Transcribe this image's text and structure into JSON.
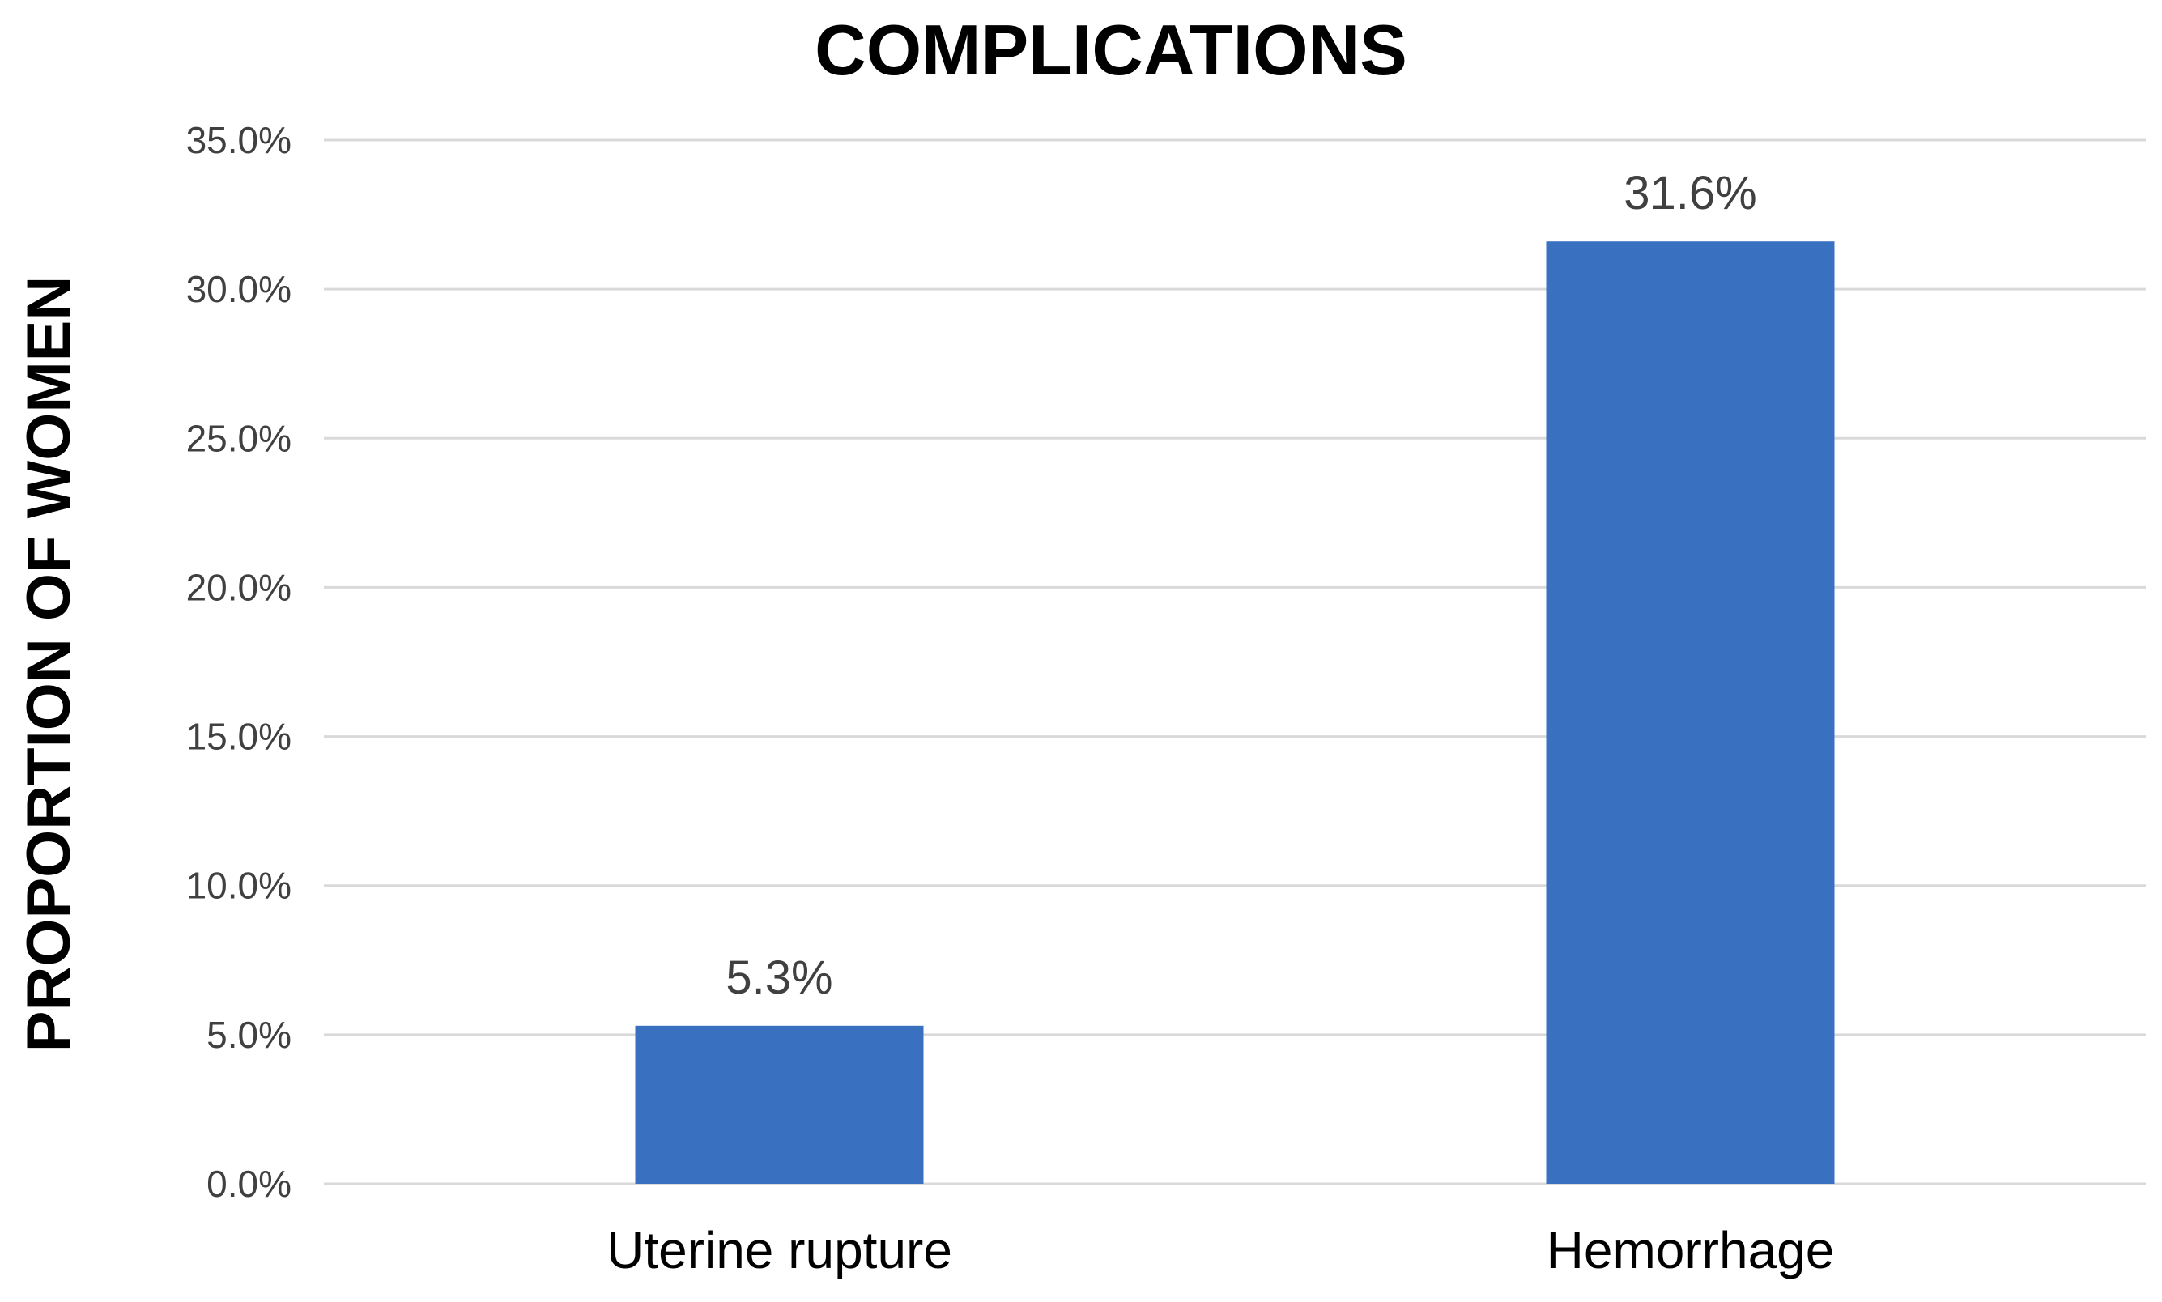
{
  "chart_data": {
    "type": "bar",
    "title": "COMPLICATIONS",
    "xlabel": "",
    "ylabel": "PROPORTION OF WOMEN",
    "categories": [
      "Uterine rupture",
      "Hemorrhage"
    ],
    "values": [
      5.3,
      31.6
    ],
    "data_labels": [
      "5.3%",
      "31.6%"
    ],
    "ylim": [
      0,
      35
    ],
    "yticks": [
      0,
      5,
      10,
      15,
      20,
      25,
      30,
      35
    ],
    "ytick_labels": [
      "0.0%",
      "5.0%",
      "10.0%",
      "15.0%",
      "20.0%",
      "25.0%",
      "30.0%",
      "35.0%"
    ],
    "grid": true,
    "legend": "none",
    "colors": {
      "bar": "#3A70C0",
      "grid": "#D9D9D9",
      "tick_text": "#404040"
    }
  }
}
